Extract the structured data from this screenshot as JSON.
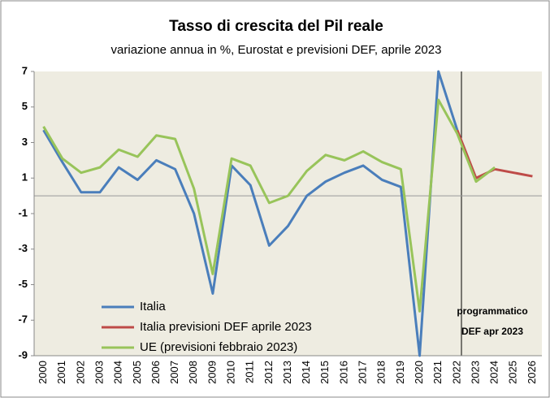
{
  "chart_data": {
    "type": "line",
    "title": "Tasso di crescita del Pil reale",
    "subtitle": "variazione annua in %, Eurostat e previsioni DEF, aprile 2023",
    "categories": [
      "2000",
      "2001",
      "2002",
      "2003",
      "2004",
      "2005",
      "2006",
      "2007",
      "2008",
      "2009",
      "2010",
      "2011",
      "2012",
      "2013",
      "2014",
      "2015",
      "2016",
      "2017",
      "2018",
      "2019",
      "2020",
      "2021",
      "2022",
      "2023",
      "2024",
      "2025",
      "2026"
    ],
    "series": [
      {
        "name": "Italia",
        "color": "#4a7ebb",
        "values": [
          3.7,
          1.9,
          0.2,
          0.2,
          1.6,
          0.9,
          2.0,
          1.5,
          -1.0,
          -5.5,
          1.7,
          0.6,
          -2.8,
          -1.7,
          0.0,
          0.8,
          1.3,
          1.7,
          0.9,
          0.5,
          -9.0,
          7.0,
          3.7,
          null,
          null,
          null,
          null
        ]
      },
      {
        "name": "Italia previsioni DEF aprile 2023",
        "color": "#be4b48",
        "values": [
          null,
          null,
          null,
          null,
          null,
          null,
          null,
          null,
          null,
          null,
          null,
          null,
          null,
          null,
          null,
          null,
          null,
          null,
          null,
          null,
          null,
          null,
          3.7,
          1.0,
          1.5,
          1.3,
          1.1
        ]
      },
      {
        "name": "UE (previsioni febbraio 2023)",
        "color": "#98c45a",
        "values": [
          3.9,
          2.1,
          1.3,
          1.6,
          2.6,
          2.2,
          3.4,
          3.2,
          0.4,
          -4.4,
          2.1,
          1.7,
          -0.4,
          0.0,
          1.4,
          2.3,
          2.0,
          2.5,
          1.9,
          1.5,
          -6.5,
          5.4,
          3.5,
          0.8,
          1.6,
          null,
          null
        ]
      }
    ],
    "ylim": [
      -9,
      7
    ],
    "yticks": [
      -9,
      -7,
      -5,
      -3,
      -1,
      1,
      3,
      5,
      7
    ],
    "grid": false,
    "annotations": [
      "programmatico",
      "DEF apr 2023"
    ],
    "legend": "lower-left"
  }
}
